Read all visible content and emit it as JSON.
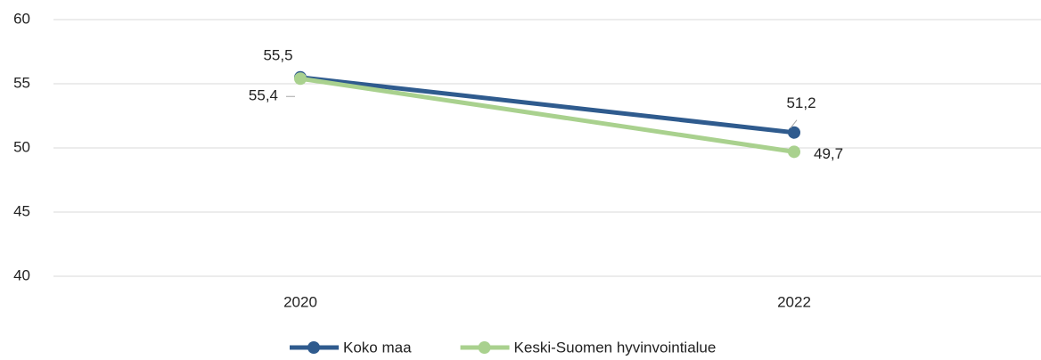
{
  "chart_data": {
    "type": "line",
    "categories": [
      "2020",
      "2022"
    ],
    "series": [
      {
        "name": "Koko maa",
        "color": "#2f5b8e",
        "values": [
          55.5,
          51.2
        ],
        "value_labels": [
          "55,5",
          "51,2"
        ]
      },
      {
        "name": "Keski-Suomen hyvinvointialue",
        "color": "#a9d18e",
        "values": [
          55.4,
          49.7
        ],
        "value_labels": [
          "55,4",
          "49,7"
        ]
      }
    ],
    "ylim": [
      40,
      60
    ],
    "yticks": [
      40,
      45,
      50,
      55,
      60
    ],
    "grid": true,
    "legend": "bottom"
  }
}
